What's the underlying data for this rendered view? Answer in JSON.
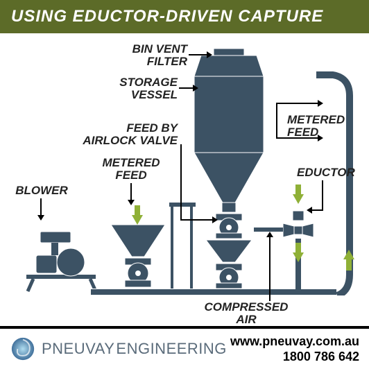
{
  "header": {
    "title": "USING EDUCTOR-DRIVEN CAPTURE",
    "bg_color": "#5c6b28",
    "text_color": "#ffffff"
  },
  "diagram": {
    "labels": {
      "bin_vent_filter": "BIN VENT\nFILTER",
      "storage_vessel": "STORAGE\nVESSEL",
      "metered_feed_right": "METERED\nFEED",
      "feed_by_airlock": "FEED BY\nAIRLOCK VALVE",
      "metered_feed_left": "METERED\nFEED",
      "eductor": "EDUCTOR",
      "blower": "BLOWER",
      "compressed_air": "COMPRESSED\nAIR"
    },
    "label_color": "#222222",
    "label_fontsize": 17,
    "equipment_color": "#3c5264",
    "equipment_stroke": "#ffffff",
    "accent_arrow_color": "#8fb037",
    "pipe_color": "#3c5264"
  },
  "footer": {
    "brand_first": "PNEUVAY",
    "brand_second": "ENGINEERING",
    "brand_color": "#5a6b7a",
    "website": "www.pneuvay.com.au",
    "phone": "1800 786 642",
    "logo_gradient_start": "#7ec8e3",
    "logo_gradient_end": "#2a5a8a"
  }
}
